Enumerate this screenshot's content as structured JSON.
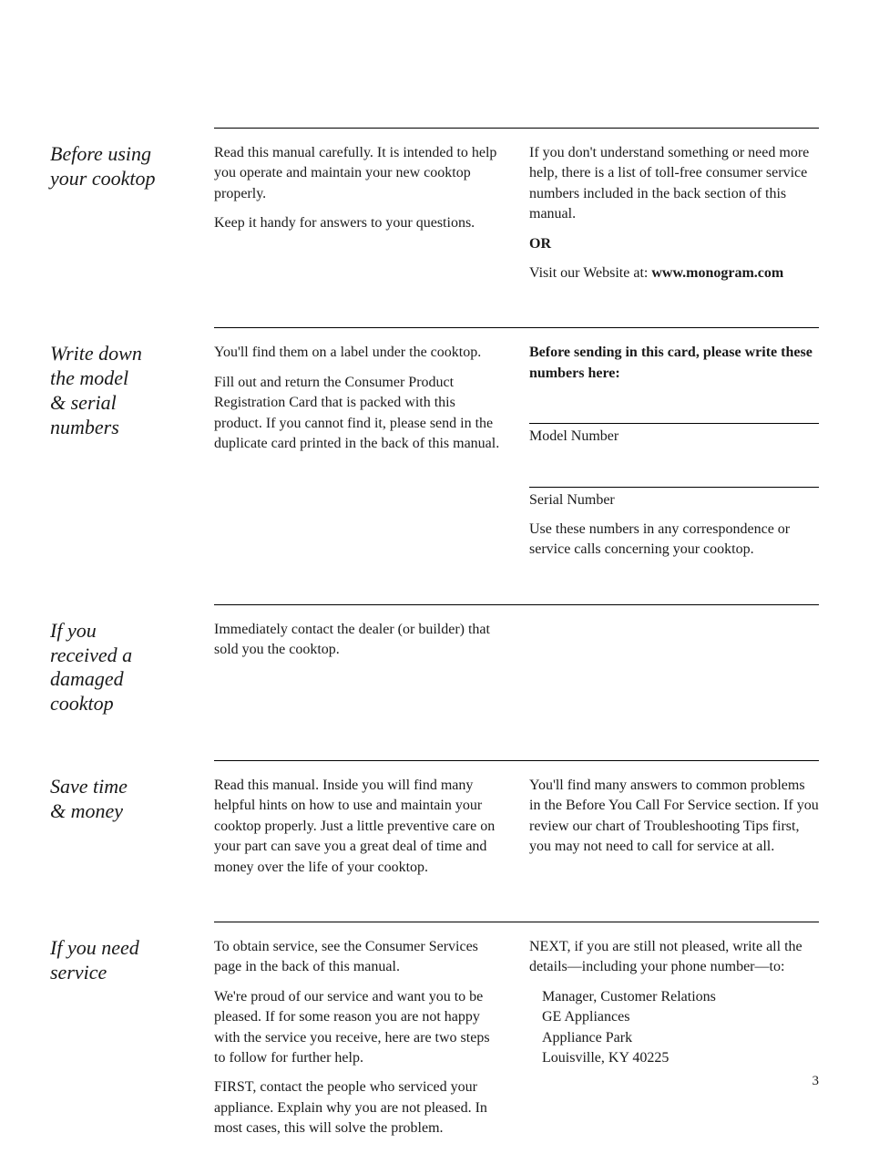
{
  "sections": {
    "before_using": {
      "heading": "Before using your cooktop",
      "col1_p1": "Read this manual carefully. It is intended to help you operate and maintain your new cooktop properly.",
      "col1_p2": "Keep it handy for answers to your questions.",
      "col2_p1": "If you don't understand something or need more help, there is a list of toll-free consumer service numbers included in the back section of this manual.",
      "col2_or": "OR",
      "col2_p2_prefix": "Visit our Website at: ",
      "col2_p2_url": "www.monogram.com"
    },
    "write_down": {
      "heading": "Write down the model & serial numbers",
      "col1_p1": "You'll find them on a label under the cooktop.",
      "col1_p2": "Fill out and return the Consumer Product Registration Card that is packed with this product. If you cannot find it, please send in the duplicate card printed in the back of this manual.",
      "col2_p1": "Before sending in this card, please write these numbers here:",
      "col2_model": "Model Number",
      "col2_serial": "Serial Number",
      "col2_p2": "Use these numbers in any correspondence or service calls concerning your cooktop."
    },
    "damaged": {
      "heading": "If you received a damaged cooktop",
      "col1_p1": "Immediately contact the dealer (or builder) that sold you the cooktop."
    },
    "save_time": {
      "heading": "Save time & money",
      "col1_p1": "Read this manual. Inside you will find many helpful hints on how to use and maintain your cooktop properly. Just a little preventive care on your part can save you a great deal of time and money over the life of your cooktop.",
      "col2_p1": "You'll find many answers to common problems in the Before You Call For Service section. If you review our chart of Troubleshooting Tips first, you may not need to call for service at all."
    },
    "need_service": {
      "heading": "If you need service",
      "col1_p1": "To obtain service, see the Consumer Services page in the back of this manual.",
      "col1_p2": "We're proud of our service and want you to be pleased. If for some reason you are not happy with the service you receive, here are two steps to follow for further help.",
      "col1_p3": "FIRST, contact the people who serviced your appliance. Explain why you are not pleased. In most cases, this will solve the problem.",
      "col2_p1": "NEXT, if you are still not pleased, write all the details—including your phone number—to:",
      "col2_addr1": "Manager, Customer Relations",
      "col2_addr2": "GE Appliances",
      "col2_addr3": "Appliance Park",
      "col2_addr4": "Louisville, KY 40225"
    }
  },
  "page_number": "3"
}
